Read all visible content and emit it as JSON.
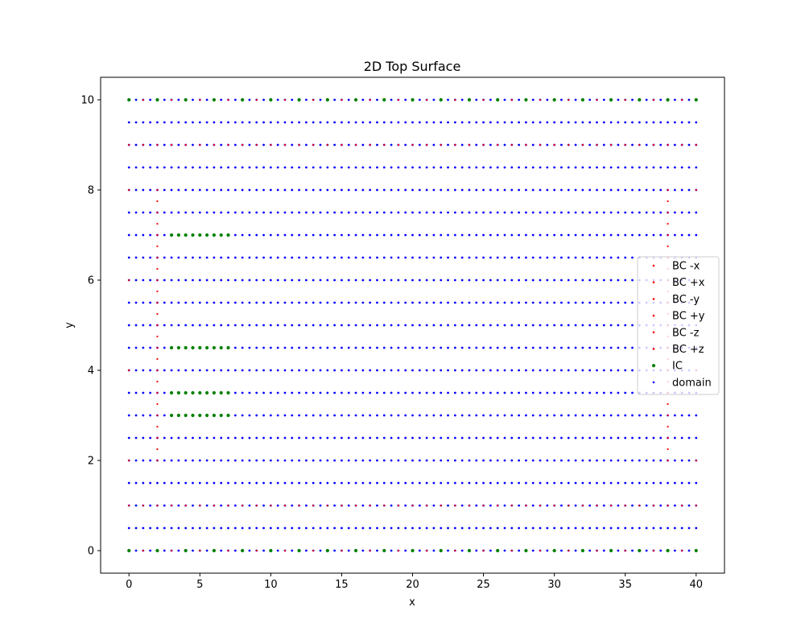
{
  "chart_data": {
    "type": "scatter",
    "title": "2D Top Surface",
    "xlabel": "x",
    "ylabel": "y",
    "xlim": [
      -2,
      42
    ],
    "ylim": [
      -0.5,
      10.5
    ],
    "xticks": [
      0,
      5,
      10,
      15,
      20,
      25,
      30,
      35,
      40
    ],
    "yticks": [
      0,
      2,
      4,
      6,
      8,
      10
    ],
    "grid": false,
    "legend_position": "center-right",
    "series": [
      {
        "name": "BC -x",
        "color": "#ff0000",
        "marker": "dot",
        "x": [
          0,
          0,
          0,
          0,
          0,
          0,
          2,
          2,
          2,
          2,
          2,
          2,
          2,
          2,
          2,
          2,
          2,
          2,
          2,
          2,
          2,
          2,
          2,
          2,
          2,
          2,
          2,
          2,
          2,
          2,
          2
        ],
        "y": [
          0,
          2,
          4,
          6,
          8,
          10,
          2,
          2.25,
          2.5,
          2.75,
          3,
          3.25,
          3.5,
          3.75,
          4,
          4.25,
          4.5,
          4.75,
          5,
          5.25,
          5.5,
          5.75,
          6,
          6.25,
          6.5,
          6.75,
          7,
          7.25,
          7.5,
          7.75,
          8
        ]
      },
      {
        "name": "BC +x",
        "color": "#ff0000",
        "marker": "dot",
        "x": [
          40,
          40,
          40,
          40,
          40,
          40,
          38,
          38,
          38,
          38,
          38,
          38,
          38,
          38,
          38,
          38,
          38,
          38,
          38,
          38,
          38,
          38,
          38,
          38,
          38,
          38,
          38,
          38,
          38,
          38,
          38
        ],
        "y": [
          0,
          2,
          4,
          6,
          8,
          10,
          2,
          2.25,
          2.5,
          2.75,
          3,
          3.25,
          3.5,
          3.75,
          4,
          4.25,
          4.5,
          4.75,
          5,
          5.25,
          5.5,
          5.75,
          6,
          6.25,
          6.5,
          6.75,
          7,
          7.25,
          7.5,
          7.75,
          8
        ]
      },
      {
        "name": "BC -y",
        "color": "#ff0000",
        "marker": "dot",
        "x": [
          0,
          1,
          2,
          3,
          4,
          5,
          6,
          7,
          8,
          9,
          10,
          11,
          12,
          13,
          14,
          15,
          16,
          17,
          18,
          19,
          20,
          21,
          22,
          23,
          24,
          25,
          26,
          27,
          28,
          29,
          30,
          31,
          32,
          33,
          34,
          35,
          36,
          37,
          38,
          39,
          40
        ],
        "y": [
          0,
          0,
          0,
          0,
          0,
          0,
          0,
          0,
          0,
          0,
          0,
          0,
          0,
          0,
          0,
          0,
          0,
          0,
          0,
          0,
          0,
          0,
          0,
          0,
          0,
          0,
          0,
          0,
          0,
          0,
          0,
          0,
          0,
          0,
          0,
          0,
          0,
          0,
          0,
          0,
          0
        ]
      },
      {
        "name": "BC +y",
        "color": "#ff0000",
        "marker": "dot",
        "x": [
          0,
          1,
          2,
          3,
          4,
          5,
          6,
          7,
          8,
          9,
          10,
          11,
          12,
          13,
          14,
          15,
          16,
          17,
          18,
          19,
          20,
          21,
          22,
          23,
          24,
          25,
          26,
          27,
          28,
          29,
          30,
          31,
          32,
          33,
          34,
          35,
          36,
          37,
          38,
          39,
          40
        ],
        "y": [
          10,
          10,
          10,
          10,
          10,
          10,
          10,
          10,
          10,
          10,
          10,
          10,
          10,
          10,
          10,
          10,
          10,
          10,
          10,
          10,
          10,
          10,
          10,
          10,
          10,
          10,
          10,
          10,
          10,
          10,
          10,
          10,
          10,
          10,
          10,
          10,
          10,
          10,
          10,
          10,
          10
        ]
      },
      {
        "name": "BC -z",
        "color": "#ff0000",
        "marker": "dot",
        "x": [
          0,
          1,
          2,
          3,
          4,
          5,
          6,
          7,
          8,
          9,
          10,
          11,
          12,
          13,
          14,
          15,
          16,
          17,
          18,
          19,
          20,
          21,
          22,
          23,
          24,
          25,
          26,
          27,
          28,
          29,
          30,
          31,
          32,
          33,
          34,
          35,
          36,
          37,
          38,
          39,
          40
        ],
        "y": [
          1,
          1,
          1,
          1,
          1,
          1,
          1,
          1,
          1,
          1,
          1,
          1,
          1,
          1,
          1,
          1,
          1,
          1,
          1,
          1,
          1,
          1,
          1,
          1,
          1,
          1,
          1,
          1,
          1,
          1,
          1,
          1,
          1,
          1,
          1,
          1,
          1,
          1,
          1,
          1,
          1
        ]
      },
      {
        "name": "BC +z",
        "color": "#ff0000",
        "marker": "dot",
        "x": [
          0,
          1,
          2,
          3,
          4,
          5,
          6,
          7,
          8,
          9,
          10,
          11,
          12,
          13,
          14,
          15,
          16,
          17,
          18,
          19,
          20,
          21,
          22,
          23,
          24,
          25,
          26,
          27,
          28,
          29,
          30,
          31,
          32,
          33,
          34,
          35,
          36,
          37,
          38,
          39,
          40
        ],
        "y": [
          9,
          9,
          9,
          9,
          9,
          9,
          9,
          9,
          9,
          9,
          9,
          9,
          9,
          9,
          9,
          9,
          9,
          9,
          9,
          9,
          9,
          9,
          9,
          9,
          9,
          9,
          9,
          9,
          9,
          9,
          9,
          9,
          9,
          9,
          9,
          9,
          9,
          9,
          9,
          9,
          9
        ]
      },
      {
        "name": "IC",
        "color": "#008000",
        "marker": "dot",
        "x": [
          0,
          2,
          4,
          6,
          8,
          10,
          12,
          14,
          16,
          18,
          20,
          22,
          24,
          26,
          28,
          30,
          32,
          34,
          36,
          38,
          40,
          0,
          2,
          4,
          6,
          8,
          10,
          12,
          14,
          16,
          18,
          20,
          22,
          24,
          26,
          28,
          30,
          32,
          34,
          36,
          38,
          40,
          3,
          3.5,
          4,
          4.5,
          5,
          5.5,
          6,
          6.5,
          7,
          3,
          3.5,
          4,
          4.5,
          5,
          5.5,
          6,
          6.5,
          7,
          3,
          3.5,
          4,
          4.5,
          5,
          5.5,
          6,
          6.5,
          7,
          3,
          3.5,
          4,
          4.5,
          5,
          5.5,
          6,
          6.5,
          7
        ],
        "y": [
          0,
          0,
          0,
          0,
          0,
          0,
          0,
          0,
          0,
          0,
          0,
          0,
          0,
          0,
          0,
          0,
          0,
          0,
          0,
          0,
          0,
          10,
          10,
          10,
          10,
          10,
          10,
          10,
          10,
          10,
          10,
          10,
          10,
          10,
          10,
          10,
          10,
          10,
          10,
          10,
          10,
          10,
          3,
          3,
          3,
          3,
          3,
          3,
          3,
          3,
          3,
          3.5,
          3.5,
          3.5,
          3.5,
          3.5,
          3.5,
          3.5,
          3.5,
          3.5,
          4.5,
          4.5,
          4.5,
          4.5,
          4.5,
          4.5,
          4.5,
          4.5,
          4.5,
          7,
          7,
          7,
          7,
          7,
          7,
          7,
          7,
          7
        ]
      },
      {
        "name": "domain",
        "color": "#0000ff",
        "marker": "dot",
        "x_range": [
          0,
          40
        ],
        "x_step": 0.5,
        "y": [
          0,
          0.5,
          1,
          1.5,
          2,
          2.5,
          3,
          3.5,
          4,
          4.5,
          5,
          5.5,
          6,
          6.5,
          7,
          7.5,
          8,
          8.5,
          9,
          9.5,
          10
        ]
      }
    ]
  }
}
